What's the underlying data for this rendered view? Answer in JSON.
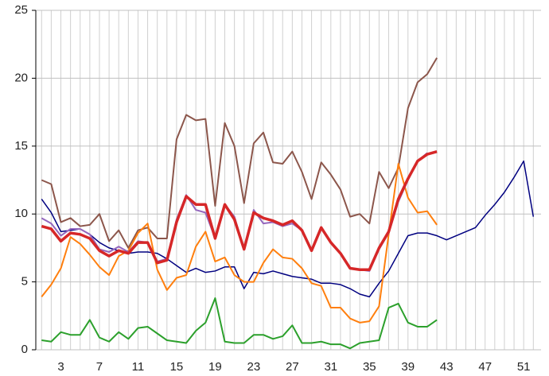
{
  "chart_data": {
    "type": "line",
    "x": [
      1,
      2,
      3,
      4,
      5,
      6,
      7,
      8,
      9,
      10,
      11,
      12,
      13,
      14,
      15,
      16,
      17,
      18,
      19,
      20,
      21,
      22,
      23,
      24,
      25,
      26,
      27,
      28,
      29,
      30,
      31,
      32,
      33,
      34,
      35,
      36,
      37,
      38,
      39,
      40,
      41,
      42,
      43,
      44,
      45,
      46,
      47,
      48,
      49,
      50,
      51,
      52
    ],
    "series": [
      {
        "color": "#000080",
        "values": [
          11.1,
          10.1,
          8.7,
          8.8,
          8.9,
          8.5,
          7.9,
          7.5,
          7.3,
          7.1,
          7.2,
          7.2,
          7.1,
          6.7,
          6.2,
          5.7,
          6.0,
          5.7,
          5.8,
          6.1,
          6.1,
          4.5,
          5.7,
          5.6,
          5.8,
          5.6,
          5.4,
          5.3,
          5.2,
          4.9,
          4.9,
          4.8,
          4.5,
          4.1,
          3.9,
          4.9,
          5.8,
          7.1,
          8.4,
          8.6,
          8.6,
          8.4,
          8.1,
          8.4,
          8.7,
          9.0,
          9.9,
          10.7,
          11.6,
          12.7,
          13.9,
          9.8
        ]
      },
      {
        "color": "#8c564b",
        "values": [
          12.5,
          12.2,
          9.4,
          9.7,
          9.1,
          9.2,
          10.0,
          8.0,
          8.8,
          7.5,
          8.8,
          9.0,
          8.2,
          8.2,
          15.5,
          17.3,
          16.9,
          17.0,
          10.6,
          16.7,
          15.0,
          10.8,
          15.2,
          16.0,
          13.8,
          13.7,
          14.6,
          13.1,
          11.1,
          13.8,
          12.9,
          11.8,
          9.8,
          10.0,
          9.3,
          13.1,
          11.9,
          13.4,
          17.8,
          19.7,
          20.3,
          21.5,
          null,
          null,
          null,
          null,
          null,
          null,
          null,
          null,
          null,
          null
        ]
      },
      {
        "color": "#ff7f0e",
        "values": [
          3.9,
          4.8,
          6.0,
          8.3,
          7.8,
          7.0,
          6.1,
          5.5,
          6.9,
          7.3,
          8.6,
          9.3,
          5.9,
          4.4,
          5.3,
          5.5,
          7.6,
          8.7,
          6.5,
          6.8,
          5.5,
          5.0,
          5.0,
          6.4,
          7.4,
          6.8,
          6.7,
          6.0,
          4.9,
          4.7,
          3.1,
          3.1,
          2.3,
          2.0,
          2.1,
          3.2,
          8.5,
          13.7,
          11.2,
          10.1,
          10.2,
          9.2,
          null,
          null,
          null,
          null,
          null,
          null,
          null,
          null,
          null,
          null
        ]
      },
      {
        "color": "#2ca02c",
        "values": [
          0.7,
          0.6,
          1.3,
          1.1,
          1.1,
          2.2,
          0.9,
          0.6,
          1.3,
          0.8,
          1.6,
          1.7,
          1.2,
          0.7,
          0.6,
          0.5,
          1.4,
          2.0,
          3.8,
          0.6,
          0.5,
          0.5,
          1.1,
          1.1,
          0.8,
          1.0,
          1.8,
          0.5,
          0.5,
          0.6,
          0.4,
          0.4,
          0.1,
          0.5,
          0.6,
          0.7,
          3.1,
          3.4,
          2.0,
          1.7,
          1.7,
          2.2,
          null,
          null,
          null,
          null,
          null,
          null,
          null,
          null,
          null,
          null
        ]
      },
      {
        "color": "#9467bd",
        "values": [
          9.7,
          9.3,
          8.4,
          8.9,
          8.9,
          8.5,
          7.4,
          7.2,
          7.6,
          7.2,
          8.0,
          7.9,
          6.5,
          6.7,
          9.6,
          11.4,
          10.3,
          10.1,
          8.2,
          10.7,
          9.8,
          7.4,
          10.3,
          9.3,
          9.4,
          9.1,
          9.3,
          8.8,
          7.3,
          9.0,
          7.9,
          7.1,
          6.0,
          5.9,
          5.8,
          7.4,
          8.6,
          10.9,
          12.5,
          13.9,
          14.5,
          null,
          null,
          null,
          null,
          null,
          null,
          null,
          null,
          null,
          null,
          null
        ]
      },
      {
        "color": "#d62728",
        "values": [
          9.1,
          8.9,
          8.0,
          8.6,
          8.5,
          8.2,
          7.3,
          6.9,
          7.3,
          7.1,
          7.9,
          7.9,
          6.4,
          6.6,
          9.4,
          11.3,
          10.7,
          10.7,
          8.2,
          10.7,
          9.6,
          7.4,
          10.1,
          9.7,
          9.5,
          9.2,
          9.5,
          8.8,
          7.3,
          9.0,
          7.9,
          7.1,
          6.0,
          5.9,
          5.9,
          7.5,
          8.7,
          11.1,
          12.6,
          13.9,
          14.4,
          14.6,
          null,
          null,
          null,
          null,
          null,
          null,
          null,
          null,
          null,
          null
        ]
      }
    ],
    "xlim": [
      0.4,
      52.8
    ],
    "ylim": [
      0,
      25
    ],
    "xticks": [
      3,
      7,
      11,
      15,
      19,
      23,
      27,
      31,
      35,
      39,
      43,
      47,
      51
    ],
    "xgrid": [
      1,
      2,
      3,
      4,
      5,
      6,
      7,
      8,
      9,
      10,
      11,
      12,
      13,
      14,
      15,
      16,
      17,
      18,
      19,
      20,
      21,
      22,
      23,
      24,
      25,
      26,
      27,
      28,
      29,
      30,
      31,
      32,
      33,
      34,
      35,
      36,
      37,
      38,
      39,
      40,
      41,
      42,
      43,
      44,
      45,
      46,
      47,
      48,
      49,
      50,
      51,
      52
    ],
    "yticks": [
      0,
      5,
      10,
      15,
      20,
      25
    ],
    "grid": true
  }
}
